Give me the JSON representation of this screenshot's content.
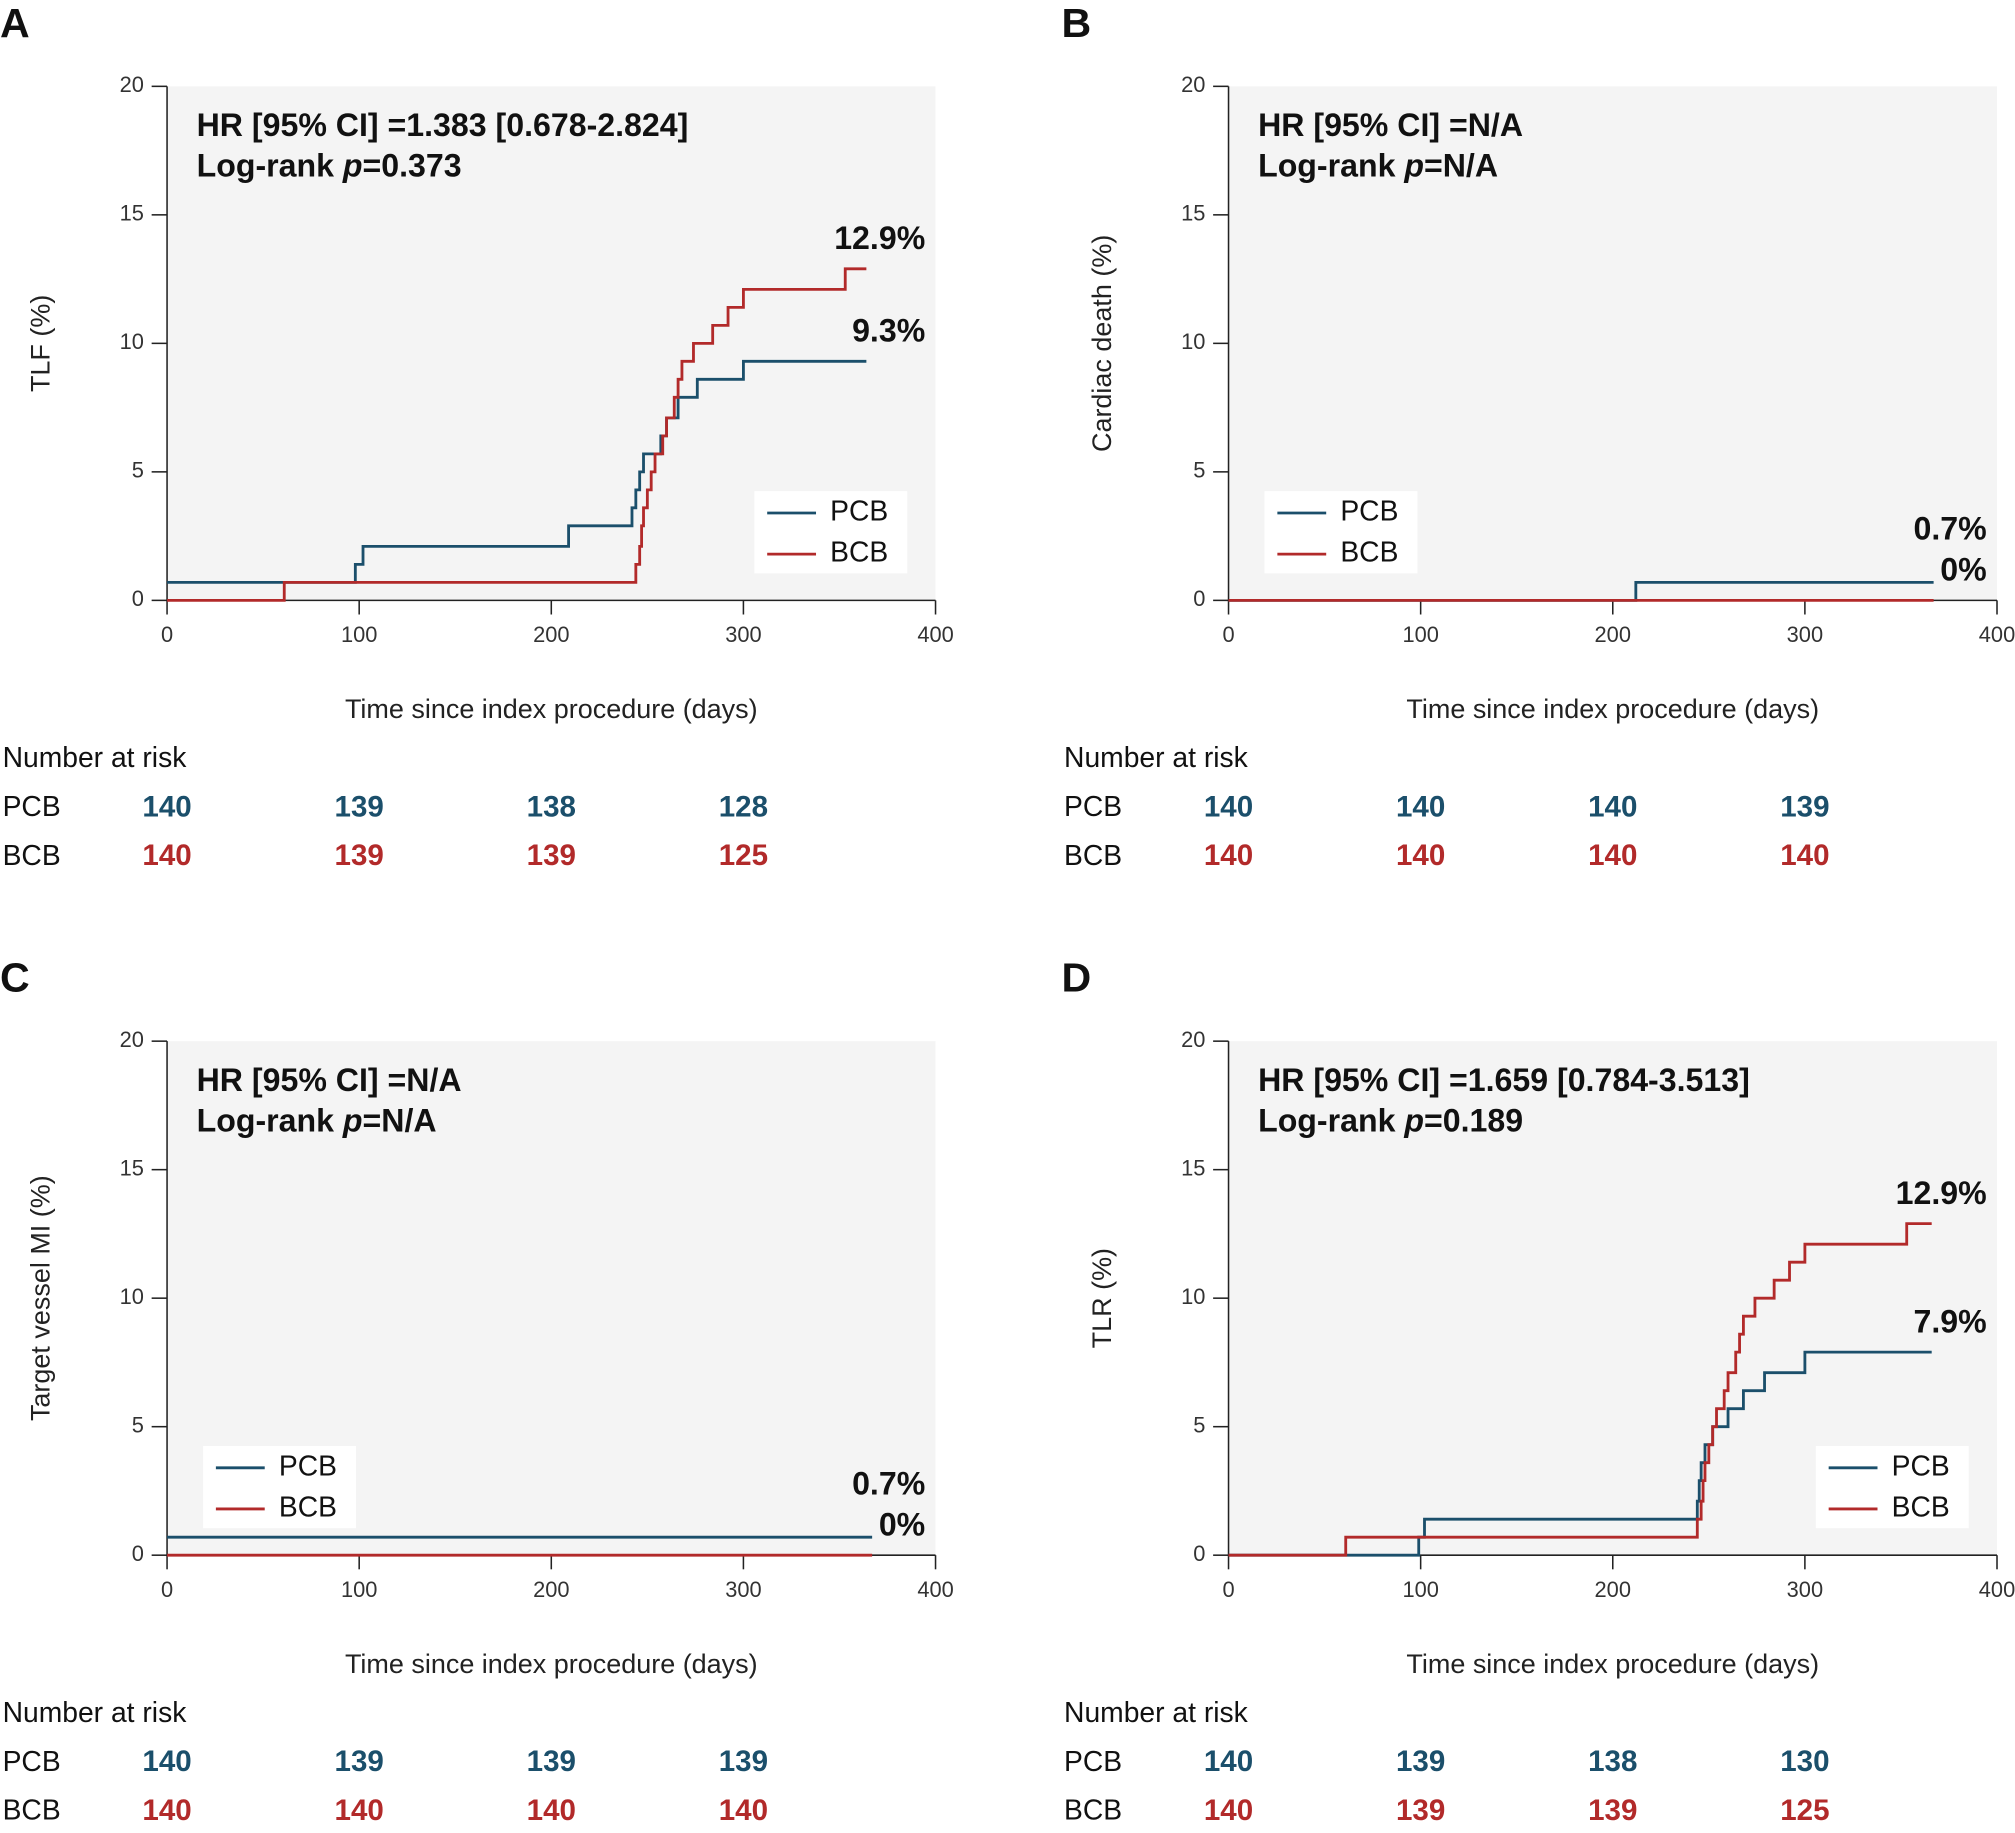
{
  "chart_data": [
    {
      "type": "line",
      "panel": "A",
      "y_label": "TLF (%)",
      "x_label": "Time since index procedure (days)",
      "annotation": {
        "hr": "HR [95% CI] =1.383 [0.678-2.824]",
        "logrank": [
          "Log-rank ",
          "p",
          "=0.373"
        ]
      },
      "xlim": [
        0,
        400
      ],
      "ylim": [
        0,
        20
      ],
      "xticks": [
        0,
        100,
        200,
        300,
        400
      ],
      "yticks": [
        0,
        5,
        10,
        15,
        20
      ],
      "legend": "lower right",
      "series": [
        {
          "name": "PCB",
          "color": "#1b4f6b",
          "end_label": "9.3%",
          "x": [
            0,
            98,
            98,
            102,
            102,
            209,
            209,
            242,
            242,
            244,
            244,
            246,
            246,
            248,
            248,
            257,
            257,
            260,
            260,
            266,
            266,
            276,
            276,
            300,
            300,
            364
          ],
          "values": [
            0.7,
            0.7,
            1.4,
            1.4,
            2.1,
            2.1,
            2.9,
            2.9,
            3.6,
            3.6,
            4.3,
            4.3,
            5.0,
            5.0,
            5.7,
            5.7,
            6.4,
            6.4,
            7.1,
            7.1,
            7.9,
            7.9,
            8.6,
            8.6,
            9.3,
            9.3
          ]
        },
        {
          "name": "BCB",
          "color": "#b22a2a",
          "end_label": "12.9%",
          "x": [
            0,
            61,
            61,
            244,
            244,
            246,
            246,
            247,
            247,
            248,
            248,
            250,
            250,
            252,
            252,
            254,
            254,
            258,
            258,
            260,
            260,
            264,
            264,
            266,
            266,
            268,
            268,
            274,
            274,
            284,
            284,
            292,
            292,
            300,
            300,
            353,
            353,
            364
          ],
          "values": [
            0,
            0,
            0.7,
            0.7,
            1.4,
            1.4,
            2.1,
            2.1,
            2.9,
            2.9,
            3.6,
            3.6,
            4.3,
            4.3,
            5.0,
            5.0,
            5.7,
            5.7,
            6.4,
            6.4,
            7.1,
            7.1,
            7.9,
            7.9,
            8.6,
            8.6,
            9.3,
            9.3,
            10.0,
            10.0,
            10.7,
            10.7,
            11.4,
            11.4,
            12.1,
            12.1,
            12.9,
            12.9
          ]
        }
      ],
      "risk_table": {
        "title": "Number at risk",
        "times": [
          0,
          100,
          200,
          300
        ],
        "rows": [
          {
            "name": "PCB",
            "values": [
              140,
              139,
              138,
              128
            ]
          },
          {
            "name": "BCB",
            "values": [
              140,
              139,
              139,
              125
            ]
          }
        ]
      }
    },
    {
      "type": "line",
      "panel": "B",
      "y_label": "Cardiac death (%)",
      "x_label": "Time since index procedure (days)",
      "annotation": {
        "hr": "HR [95% CI] =N/A",
        "logrank": [
          "Log-rank ",
          "p",
          "=N/A"
        ]
      },
      "xlim": [
        0,
        400
      ],
      "ylim": [
        0,
        20
      ],
      "xticks": [
        0,
        100,
        200,
        300,
        400
      ],
      "yticks": [
        0,
        5,
        10,
        15,
        20
      ],
      "legend": "lower left",
      "series": [
        {
          "name": "PCB",
          "color": "#1b4f6b",
          "end_label": "0.7%",
          "x": [
            0,
            212,
            212,
            367
          ],
          "values": [
            0,
            0,
            0.7,
            0.7
          ]
        },
        {
          "name": "BCB",
          "color": "#b22a2a",
          "end_label": "0%",
          "x": [
            0,
            367
          ],
          "values": [
            0,
            0
          ]
        }
      ],
      "risk_table": {
        "title": "Number at risk",
        "times": [
          0,
          100,
          200,
          300
        ],
        "rows": [
          {
            "name": "PCB",
            "values": [
              140,
              140,
              140,
              139
            ]
          },
          {
            "name": "BCB",
            "values": [
              140,
              140,
              140,
              140
            ]
          }
        ]
      }
    },
    {
      "type": "line",
      "panel": "C",
      "y_label": "Target vessel MI (%)",
      "x_label": "Time since index procedure (days)",
      "annotation": {
        "hr": "HR [95% CI] =N/A",
        "logrank": [
          "Log-rank ",
          "p",
          "=N/A"
        ]
      },
      "xlim": [
        0,
        400
      ],
      "ylim": [
        0,
        20
      ],
      "xticks": [
        0,
        100,
        200,
        300,
        400
      ],
      "yticks": [
        0,
        5,
        10,
        15,
        20
      ],
      "legend": "lower left",
      "series": [
        {
          "name": "PCB",
          "color": "#1b4f6b",
          "end_label": "0.7%",
          "x": [
            0,
            367
          ],
          "values": [
            0.7,
            0.7
          ]
        },
        {
          "name": "BCB",
          "color": "#b22a2a",
          "end_label": "0%",
          "x": [
            0,
            367
          ],
          "values": [
            0,
            0
          ]
        }
      ],
      "risk_table": {
        "title": "Number at risk",
        "times": [
          0,
          100,
          200,
          300
        ],
        "rows": [
          {
            "name": "PCB",
            "values": [
              140,
              139,
              139,
              139
            ]
          },
          {
            "name": "BCB",
            "values": [
              140,
              140,
              140,
              140
            ]
          }
        ]
      }
    },
    {
      "type": "line",
      "panel": "D",
      "y_label": "TLR (%)",
      "x_label": "Time since index procedure (days)",
      "annotation": {
        "hr": "HR [95% CI] =1.659 [0.784-3.513]",
        "logrank": [
          "Log-rank ",
          "p",
          "=0.189"
        ]
      },
      "xlim": [
        0,
        400
      ],
      "ylim": [
        0,
        20
      ],
      "xticks": [
        0,
        100,
        200,
        300,
        400
      ],
      "yticks": [
        0,
        5,
        10,
        15,
        20
      ],
      "legend": "lower right",
      "series": [
        {
          "name": "PCB",
          "color": "#1b4f6b",
          "end_label": "7.9%",
          "x": [
            0,
            99,
            99,
            102,
            102,
            244,
            244,
            245,
            245,
            246,
            246,
            248,
            248,
            252,
            252,
            260,
            260,
            268,
            268,
            279,
            279,
            300,
            300,
            366
          ],
          "values": [
            0,
            0,
            0.7,
            0.7,
            1.4,
            1.4,
            2.1,
            2.1,
            2.9,
            2.9,
            3.6,
            3.6,
            4.3,
            4.3,
            5.0,
            5.0,
            5.7,
            5.7,
            6.4,
            6.4,
            7.1,
            7.1,
            7.9,
            7.9
          ]
        },
        {
          "name": "BCB",
          "color": "#b22a2a",
          "end_label": "12.9%",
          "x": [
            0,
            61,
            61,
            244,
            244,
            246,
            246,
            247,
            247,
            248,
            248,
            250,
            250,
            252,
            252,
            254,
            254,
            258,
            258,
            260,
            260,
            264,
            264,
            266,
            266,
            268,
            268,
            274,
            274,
            284,
            284,
            292,
            292,
            300,
            300,
            353,
            353,
            366
          ],
          "values": [
            0,
            0,
            0.7,
            0.7,
            1.4,
            1.4,
            2.1,
            2.1,
            2.9,
            2.9,
            3.6,
            3.6,
            4.3,
            4.3,
            5.0,
            5.0,
            5.7,
            5.7,
            6.4,
            6.4,
            7.1,
            7.1,
            7.9,
            7.9,
            8.6,
            8.6,
            9.3,
            9.3,
            10.0,
            10.0,
            10.7,
            10.7,
            11.4,
            11.4,
            12.1,
            12.1,
            12.9,
            12.9
          ]
        }
      ],
      "risk_table": {
        "title": "Number at risk",
        "times": [
          0,
          100,
          200,
          300
        ],
        "rows": [
          {
            "name": "PCB",
            "values": [
              140,
              139,
              138,
              130
            ]
          },
          {
            "name": "BCB",
            "values": [
              140,
              139,
              139,
              125
            ]
          }
        ]
      }
    }
  ]
}
